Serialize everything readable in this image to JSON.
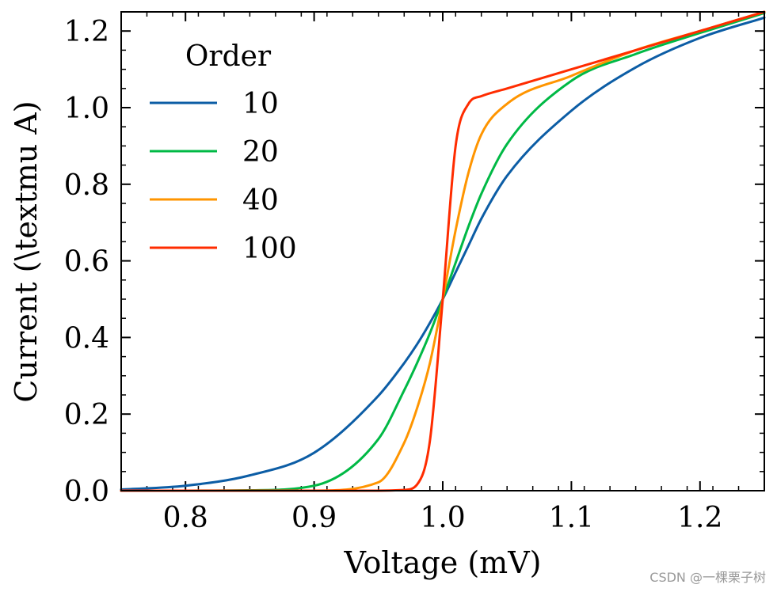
{
  "chart_data": {
    "type": "line",
    "title": "",
    "xlabel": "Voltage (mV)",
    "ylabel": "Current (\\textmu A)",
    "xlim": [
      0.75,
      1.25
    ],
    "ylim": [
      0.0,
      1.25
    ],
    "x_ticks": [
      0.8,
      0.9,
      1.0,
      1.1,
      1.2
    ],
    "x_tick_labels": [
      "0.8",
      "0.9",
      "1.0",
      "1.1",
      "1.2"
    ],
    "y_ticks": [
      0.0,
      0.2,
      0.4,
      0.6,
      0.8,
      1.0,
      1.2
    ],
    "y_tick_labels": [
      "0.0",
      "0.2",
      "0.4",
      "0.6",
      "0.8",
      "1.0",
      "1.2"
    ],
    "grid": false,
    "legend_title": "Order",
    "legend_position": "top-left",
    "x": [
      0.75,
      0.8,
      0.85,
      0.9,
      0.95,
      0.97,
      0.98,
      0.99,
      1.0,
      1.01,
      1.02,
      1.03,
      1.05,
      1.1,
      1.15,
      1.2,
      1.25
    ],
    "series": [
      {
        "name": "10",
        "color": "#0C5DA5",
        "values": [
          0.003,
          0.013,
          0.04,
          0.099,
          0.248,
          0.333,
          0.382,
          0.438,
          0.5,
          0.57,
          0.64,
          0.71,
          0.822,
          0.992,
          1.105,
          1.182,
          1.235
        ]
      },
      {
        "name": "20",
        "color": "#00B945",
        "values": [
          0.0,
          0.0,
          0.001,
          0.013,
          0.135,
          0.262,
          0.333,
          0.411,
          0.5,
          0.595,
          0.69,
          0.775,
          0.905,
          1.07,
          1.14,
          1.195,
          1.247
        ]
      },
      {
        "name": "40",
        "color": "#FF9500",
        "values": [
          0.0,
          0.0,
          0.0,
          0.0,
          0.022,
          0.125,
          0.215,
          0.333,
          0.5,
          0.68,
          0.83,
          0.93,
          1.01,
          1.083,
          1.15,
          1.2,
          1.25
        ]
      },
      {
        "name": "100",
        "color": "#FF2C00",
        "values": [
          0.0,
          0.0,
          0.0,
          0.0,
          0.0,
          0.002,
          0.016,
          0.13,
          0.5,
          0.9,
          1.01,
          1.03,
          1.05,
          1.1,
          1.15,
          1.2,
          1.25
        ]
      }
    ]
  },
  "watermark": "CSDN @一棵栗子树"
}
